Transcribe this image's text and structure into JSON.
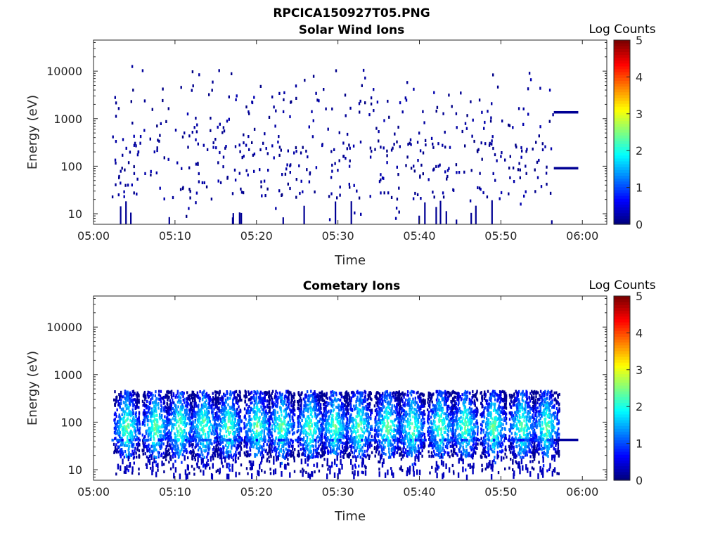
{
  "figure": {
    "title": "RPCICA150927T05.PNG"
  },
  "chart_data": [
    {
      "type": "heatmap",
      "title": "Solar Wind Ions",
      "xlabel": "Time",
      "ylabel": "Energy (eV)",
      "y_scale": "log",
      "xlim": [
        "05:00",
        "06:03"
      ],
      "ylim": [
        6,
        45000
      ],
      "x_ticks": [
        "05:00",
        "05:10",
        "05:20",
        "05:30",
        "05:40",
        "05:50",
        "06:00"
      ],
      "y_ticks": [
        "10",
        "100",
        "1000",
        "10000"
      ],
      "y_tick_values": [
        10,
        100,
        1000,
        10000
      ],
      "colorbar": {
        "label": "Log Counts",
        "min": 0,
        "max": 5,
        "ticks": [
          "0",
          "1",
          "2",
          "3",
          "4",
          "5"
        ],
        "colormap": "jet"
      },
      "grid": false,
      "pattern": "sparse",
      "seed": 7,
      "bands": [
        {
          "start": "05:56.5",
          "end": "05:59.5",
          "energy": 1350,
          "value": 0.1
        },
        {
          "start": "05:56.5",
          "end": "05:59.5",
          "energy": 90,
          "value": 0.1
        }
      ]
    },
    {
      "type": "heatmap",
      "title": "Cometary Ions",
      "xlabel": "Time",
      "ylabel": "Energy (eV)",
      "y_scale": "log",
      "xlim": [
        "05:00",
        "06:03"
      ],
      "ylim": [
        6,
        45000
      ],
      "x_ticks": [
        "05:00",
        "05:10",
        "05:20",
        "05:30",
        "05:40",
        "05:50",
        "06:00"
      ],
      "y_ticks": [
        "10",
        "100",
        "1000",
        "10000"
      ],
      "y_tick_values": [
        10,
        100,
        1000,
        10000
      ],
      "colorbar": {
        "label": "Log Counts",
        "min": 0,
        "max": 5,
        "ticks": [
          "0",
          "1",
          "2",
          "3",
          "4",
          "5"
        ],
        "colormap": "jet"
      },
      "grid": false,
      "pattern": "bursts",
      "seed": 13,
      "bursts": [
        "05:04",
        "05:07.5",
        "05:10.5",
        "05:13.5",
        "05:16.5",
        "05:20",
        "05:23",
        "05:26.5",
        "05:29.5",
        "05:32.5",
        "05:36",
        "05:39",
        "05:42.5",
        "05:45.5",
        "05:49",
        "05:52.5",
        "05:55.5"
      ],
      "bands": [
        {
          "start": "05:56.5",
          "end": "05:59.5",
          "energy": 42,
          "value": 0.15
        }
      ]
    }
  ]
}
